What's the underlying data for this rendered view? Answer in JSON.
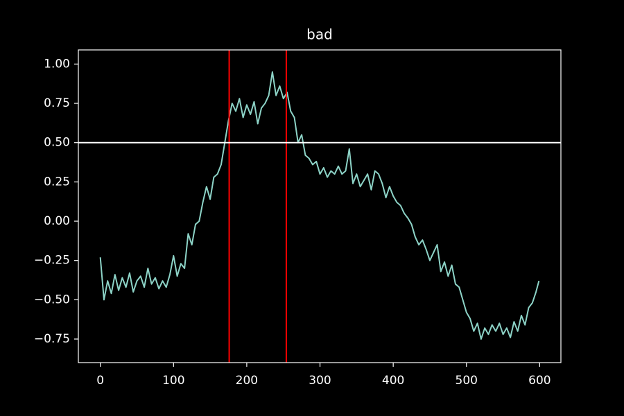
{
  "chart_data": {
    "type": "line",
    "title": "bad",
    "x": [
      0,
      5,
      10,
      15,
      20,
      25,
      30,
      35,
      40,
      45,
      50,
      55,
      60,
      65,
      70,
      75,
      80,
      85,
      90,
      95,
      100,
      105,
      110,
      115,
      120,
      125,
      130,
      135,
      140,
      145,
      150,
      155,
      160,
      165,
      170,
      175,
      180,
      185,
      190,
      195,
      200,
      205,
      210,
      215,
      220,
      225,
      230,
      235,
      240,
      245,
      250,
      255,
      260,
      265,
      270,
      275,
      280,
      285,
      290,
      295,
      300,
      305,
      310,
      315,
      320,
      325,
      330,
      335,
      340,
      345,
      350,
      355,
      360,
      365,
      370,
      375,
      380,
      385,
      390,
      395,
      400,
      405,
      410,
      415,
      420,
      425,
      430,
      435,
      440,
      445,
      450,
      455,
      460,
      465,
      470,
      475,
      480,
      485,
      490,
      495,
      500,
      505,
      510,
      515,
      520,
      525,
      530,
      535,
      540,
      545,
      550,
      555,
      560,
      565,
      570,
      575,
      580,
      585,
      590,
      595,
      599
    ],
    "series": [
      {
        "color": "#8dd3c7",
        "values": [
          -0.23,
          -0.5,
          -0.38,
          -0.46,
          -0.34,
          -0.44,
          -0.36,
          -0.42,
          -0.33,
          -0.45,
          -0.38,
          -0.35,
          -0.42,
          -0.3,
          -0.4,
          -0.36,
          -0.43,
          -0.38,
          -0.42,
          -0.34,
          -0.22,
          -0.35,
          -0.27,
          -0.3,
          -0.08,
          -0.15,
          -0.02,
          0.0,
          0.12,
          0.22,
          0.14,
          0.28,
          0.3,
          0.36,
          0.5,
          0.64,
          0.75,
          0.7,
          0.78,
          0.66,
          0.74,
          0.68,
          0.76,
          0.62,
          0.72,
          0.75,
          0.8,
          0.95,
          0.8,
          0.86,
          0.78,
          0.82,
          0.7,
          0.66,
          0.5,
          0.55,
          0.42,
          0.4,
          0.36,
          0.38,
          0.3,
          0.34,
          0.28,
          0.32,
          0.3,
          0.35,
          0.3,
          0.32,
          0.46,
          0.24,
          0.3,
          0.22,
          0.26,
          0.3,
          0.2,
          0.32,
          0.3,
          0.24,
          0.15,
          0.22,
          0.16,
          0.12,
          0.1,
          0.05,
          0.02,
          -0.02,
          -0.1,
          -0.15,
          -0.12,
          -0.18,
          -0.25,
          -0.2,
          -0.15,
          -0.32,
          -0.26,
          -0.35,
          -0.28,
          -0.4,
          -0.42,
          -0.5,
          -0.58,
          -0.62,
          -0.7,
          -0.65,
          -0.75,
          -0.68,
          -0.72,
          -0.66,
          -0.7,
          -0.65,
          -0.72,
          -0.68,
          -0.74,
          -0.64,
          -0.7,
          -0.6,
          -0.66,
          -0.55,
          -0.52,
          -0.45,
          -0.38
        ]
      }
    ],
    "xlim": [
      -30,
      629
    ],
    "ylim": [
      -0.9,
      1.09
    ],
    "xticks": [
      0,
      100,
      200,
      300,
      400,
      500,
      600
    ],
    "yticks": [
      {
        "value": -0.75,
        "label": "−0.75"
      },
      {
        "value": -0.5,
        "label": "−0.50"
      },
      {
        "value": -0.25,
        "label": "−0.25"
      },
      {
        "value": 0,
        "label": "0.00"
      },
      {
        "value": 0.25,
        "label": "0.25"
      },
      {
        "value": 0.5,
        "label": "0.50"
      },
      {
        "value": 0.75,
        "label": "0.75"
      },
      {
        "value": 1,
        "label": "1.00"
      }
    ],
    "vlines": [
      {
        "value": 176,
        "color": "#ff0000"
      },
      {
        "value": 254,
        "color": "#ff0000"
      }
    ],
    "hlines": [
      {
        "value": 0.5,
        "color": "#ffffff"
      }
    ],
    "grid": false
  }
}
